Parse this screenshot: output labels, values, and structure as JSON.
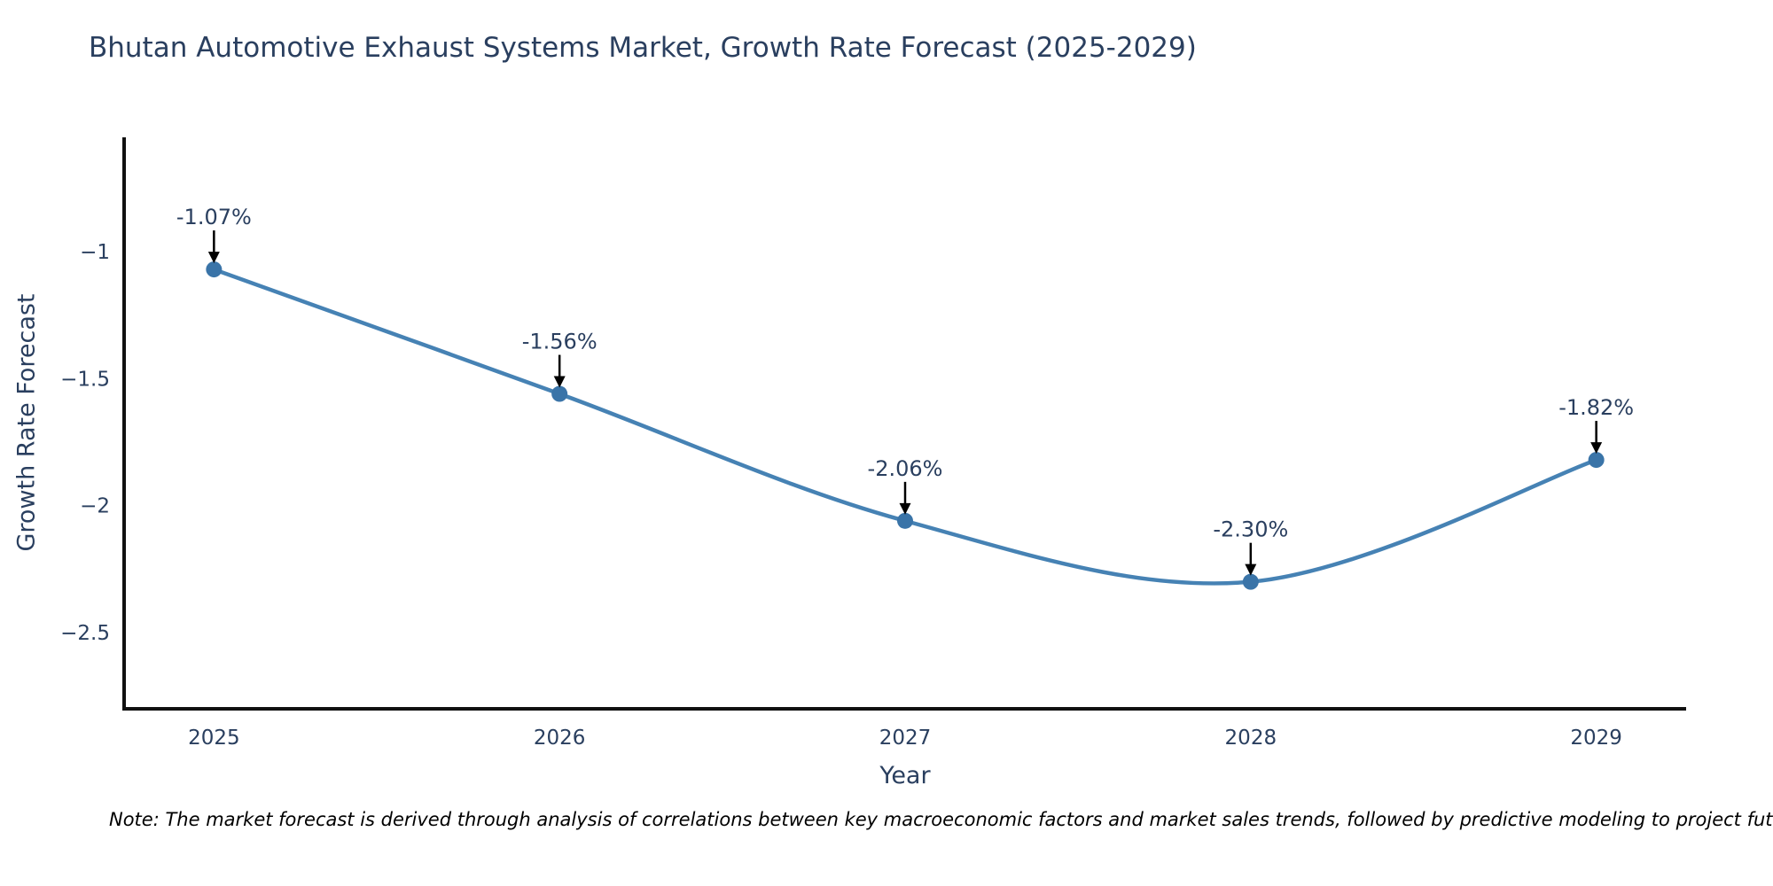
{
  "title": "Bhutan Automotive Exhaust Systems Market, Growth Rate Forecast (2025-2029)",
  "note": "Note: The market forecast is derived through analysis of correlations between key macroeconomic factors and market sales trends, followed by predictive modeling to project future sa",
  "chart_data": {
    "type": "line",
    "title": "Bhutan Automotive Exhaust Systems Market, Growth Rate Forecast (2025-2029)",
    "xlabel": "Year",
    "ylabel": "Growth Rate Forecast",
    "x": [
      2025,
      2026,
      2027,
      2028,
      2029
    ],
    "series": [
      {
        "name": "Growth Rate Forecast",
        "values": [
          -1.07,
          -1.56,
          -2.06,
          -2.3,
          -1.82
        ]
      }
    ],
    "point_labels": [
      "-1.07%",
      "-1.56%",
      "-2.06%",
      "-2.30%",
      "-1.82%"
    ],
    "xtick_labels": [
      "2025",
      "2026",
      "2027",
      "2028",
      "2029"
    ],
    "yticks": [
      -1,
      -1.5,
      -2,
      -2.5
    ],
    "ytick_labels": [
      "−1",
      "−1.5",
      "−2",
      "−2.5"
    ],
    "xlim": [
      2024.74,
      2029.26
    ],
    "ylim": [
      -2.8,
      -0.55
    ],
    "grid": false,
    "legend": "none",
    "line_shape": "spline",
    "colors": {
      "line": "#4682b4",
      "marker": "#3a74a8",
      "axis": "#111111",
      "text": "#2a3f5f",
      "annotation": "#2a3f5f",
      "arrow": "#000000"
    }
  }
}
